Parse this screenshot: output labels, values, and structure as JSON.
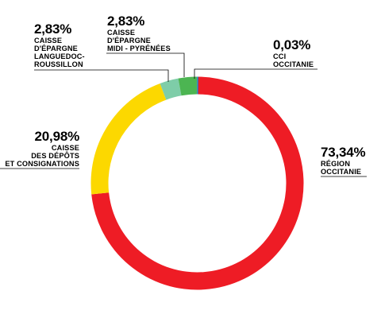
{
  "chart_data": {
    "type": "pie",
    "slices": [
      {
        "value": 73.34,
        "value_label": "73,34%",
        "label": "RÉGION\nOCCITANIE",
        "color": "#ee1c25"
      },
      {
        "value": 20.98,
        "value_label": "20,98%",
        "label": "CAISSE\nDES DÉPÔTS\nET CONSIGNATIONS",
        "color": "#fcd800"
      },
      {
        "value": 2.83,
        "value_label": "2,83%",
        "label": "CAISSE\nD'ÉPARGNE\nLANGUEDOC-\nROUSSILLON",
        "color": "#7ecda8"
      },
      {
        "value": 2.83,
        "value_label": "2,83%",
        "label": "CAISSE\nD'ÉPARGNE\nMIDI - PYRÉNÉES",
        "color": "#4cb552"
      },
      {
        "value": 0.03,
        "value_label": "0,03%",
        "label": "CCI\nOCCITANIE",
        "color": "#1e7bbf"
      }
    ]
  }
}
